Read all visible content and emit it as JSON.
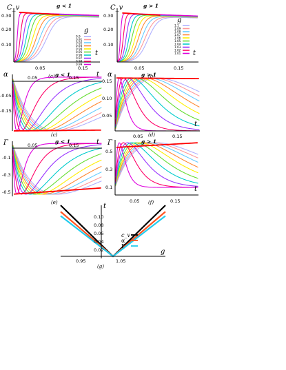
{
  "palette": [
    "#b0b0ff",
    "#ff9999",
    "#66ccff",
    "#ff8833",
    "#ffee00",
    "#66dd33",
    "#00cccc",
    "#9933ff",
    "#ff0066",
    "#dd00dd"
  ],
  "legend_header": "g",
  "chart_data": [
    {
      "id": "a",
      "type": "line",
      "title": "g < 1",
      "caption": "(a)",
      "xlabel": "t",
      "ylabel": "C_v",
      "xticks": [
        "0.05",
        "0.15"
      ],
      "yticks": [
        "0.30",
        "0.20",
        "0.10"
      ],
      "xlim": [
        0,
        0.2
      ],
      "ylim": [
        0,
        0.34
      ],
      "grid": false,
      "legend_position": "right",
      "series": [
        {
          "name": "0.9",
          "color": "#b0b0ff",
          "t0": 0.076,
          "w": 0.02,
          "peak": 0.3
        },
        {
          "name": "0.91",
          "color": "#ff9999",
          "t0": 0.068,
          "w": 0.019,
          "peak": 0.302
        },
        {
          "name": "0.92",
          "color": "#66ccff",
          "t0": 0.06,
          "w": 0.017,
          "peak": 0.303
        },
        {
          "name": "0.93",
          "color": "#ff8833",
          "t0": 0.052,
          "w": 0.015,
          "peak": 0.305
        },
        {
          "name": "0.94",
          "color": "#ffee00",
          "t0": 0.044,
          "w": 0.013,
          "peak": 0.306
        },
        {
          "name": "0.95",
          "color": "#66dd33",
          "t0": 0.036,
          "w": 0.011,
          "peak": 0.308
        },
        {
          "name": "0.96",
          "color": "#00cccc",
          "t0": 0.029,
          "w": 0.009,
          "peak": 0.309
        },
        {
          "name": "0.97",
          "color": "#9933ff",
          "t0": 0.022,
          "w": 0.007,
          "peak": 0.311
        },
        {
          "name": "0.98",
          "color": "#ff0066",
          "t0": 0.015,
          "w": 0.005,
          "peak": 0.313
        },
        {
          "name": "0.99",
          "color": "#dd00dd",
          "t0": 0.008,
          "w": 0.003,
          "peak": 0.314
        }
      ]
    },
    {
      "id": "b",
      "type": "line",
      "title": "g > 1",
      "caption": "(b)",
      "xlabel": "t",
      "ylabel": "C_v",
      "xticks": [
        "0.05",
        "0.15"
      ],
      "yticks": [
        "0.30",
        "0.20",
        "0.10"
      ],
      "xlim": [
        0,
        0.2
      ],
      "ylim": [
        0,
        0.34
      ],
      "grid": false,
      "legend_position": "right",
      "series": [
        {
          "name": "1.1",
          "color": "#b0b0ff",
          "t0": 0.076,
          "w": 0.02,
          "peak": 0.296
        },
        {
          "name": "1.09",
          "color": "#ff9999",
          "t0": 0.068,
          "w": 0.019,
          "peak": 0.298
        },
        {
          "name": "1.08",
          "color": "#66ccff",
          "t0": 0.06,
          "w": 0.017,
          "peak": 0.299
        },
        {
          "name": "1.07",
          "color": "#ff8833",
          "t0": 0.052,
          "w": 0.015,
          "peak": 0.301
        },
        {
          "name": "1.06",
          "color": "#ffee00",
          "t0": 0.044,
          "w": 0.013,
          "peak": 0.302
        },
        {
          "name": "1.05",
          "color": "#66dd33",
          "t0": 0.036,
          "w": 0.011,
          "peak": 0.304
        },
        {
          "name": "1.04",
          "color": "#00cccc",
          "t0": 0.029,
          "w": 0.009,
          "peak": 0.305
        },
        {
          "name": "1.03",
          "color": "#9933ff",
          "t0": 0.022,
          "w": 0.007,
          "peak": 0.307
        },
        {
          "name": "1.02",
          "color": "#ff0066",
          "t0": 0.015,
          "w": 0.005,
          "peak": 0.309
        },
        {
          "name": "1.01",
          "color": "#dd00dd",
          "t0": 0.008,
          "w": 0.003,
          "peak": 0.31
        }
      ]
    },
    {
      "id": "c",
      "type": "line",
      "title": "g < 1",
      "caption": "(c)",
      "xlabel": "t",
      "ylabel": "α",
      "xticks": [
        "0.05",
        "0.15"
      ],
      "yticks": [
        "-0.05",
        "-0.15"
      ],
      "xlim": [
        0,
        0.2
      ],
      "ylim": [
        -0.2,
        0.01
      ],
      "note": "alpha decreases to minimum near -0.2 then rises toward 0"
    },
    {
      "id": "d",
      "type": "line",
      "title": "g > 1",
      "caption": "(d)",
      "xlabel": "t",
      "ylabel": "α",
      "xticks": [
        "0.05",
        "0.15"
      ],
      "yticks": [
        "0.15",
        "0.10",
        "0.05"
      ],
      "xlim": [
        0,
        0.2
      ],
      "ylim": [
        0,
        0.16
      ],
      "note": "alpha rises to maximum near 0.15 then decays"
    },
    {
      "id": "e",
      "type": "line",
      "title": "g < 1",
      "caption": "(e)",
      "xlabel": "t",
      "ylabel": "Γ",
      "xticks": [
        "0.05",
        "0.15"
      ],
      "yticks": [
        "-0.1",
        "-0.3",
        "-0.5"
      ],
      "xlim": [
        0,
        0.2
      ],
      "ylim": [
        -0.52,
        0.0
      ]
    },
    {
      "id": "f",
      "type": "line",
      "title": "g > 1",
      "caption": "(f)",
      "xlabel": "t",
      "ylabel": "Γ",
      "xticks": [
        "0.05",
        "0.15"
      ],
      "yticks": [
        "0.5",
        "0.3",
        "0.1"
      ],
      "xlim": [
        0,
        0.2
      ],
      "ylim": [
        0,
        0.58
      ]
    },
    {
      "id": "g",
      "type": "line",
      "caption": "(g)",
      "xlabel": "g",
      "ylabel": "t",
      "xticks": [
        "0.95",
        "1.05"
      ],
      "yticks": [
        "0.10",
        "0.08",
        "0.06",
        "0.04",
        "0.02"
      ],
      "xlim": [
        0.9,
        1.1
      ],
      "ylim": [
        0,
        0.12
      ],
      "series": [
        {
          "name": "c_v",
          "color": "#000000",
          "slope": 1.2
        },
        {
          "name": "α",
          "color": "#ff5522",
          "slope": 1.05
        },
        {
          "name": "Γ",
          "color": "#22ccee",
          "slope": 0.95
        }
      ]
    }
  ]
}
